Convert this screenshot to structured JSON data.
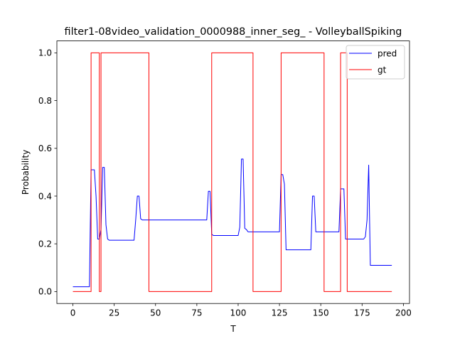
{
  "chart_data": {
    "type": "line",
    "title": "filter1-08video_validation_0000988_inner_seg_ - VolleyballSpiking",
    "xlabel": "T",
    "ylabel": "Probability",
    "xlim": [
      -9.7,
      203.7
    ],
    "ylim": [
      -0.05,
      1.05
    ],
    "xticks": [
      0,
      25,
      50,
      75,
      100,
      125,
      150,
      175,
      200
    ],
    "yticks": [
      0.0,
      0.2,
      0.4,
      0.6,
      0.8,
      1.0
    ],
    "xtick_labels": [
      "0",
      "25",
      "50",
      "75",
      "100",
      "125",
      "150",
      "175",
      "200"
    ],
    "ytick_labels": [
      "0.0",
      "0.2",
      "0.4",
      "0.6",
      "0.8",
      "1.0"
    ],
    "grid": false,
    "legend_position": "top-right",
    "series": [
      {
        "name": "pred",
        "color": "#0000ff",
        "x": [
          0,
          10,
          11,
          12,
          13,
          14,
          15,
          16,
          17,
          18,
          19,
          20,
          21,
          22,
          37,
          38,
          39,
          40,
          41,
          42,
          81,
          82,
          83,
          84,
          85,
          100,
          101,
          102,
          103,
          104,
          105,
          106,
          125,
          126,
          127,
          128,
          129,
          144,
          145,
          146,
          147,
          161,
          162,
          163,
          164,
          165,
          176,
          177,
          178,
          179,
          180,
          193
        ],
        "y": [
          0.02,
          0.02,
          0.51,
          0.51,
          0.51,
          0.4,
          0.22,
          0.22,
          0.26,
          0.52,
          0.52,
          0.28,
          0.22,
          0.215,
          0.215,
          0.3,
          0.4,
          0.4,
          0.305,
          0.3,
          0.3,
          0.42,
          0.42,
          0.24,
          0.235,
          0.235,
          0.27,
          0.555,
          0.555,
          0.265,
          0.26,
          0.25,
          0.25,
          0.49,
          0.49,
          0.45,
          0.175,
          0.175,
          0.4,
          0.4,
          0.25,
          0.25,
          0.43,
          0.43,
          0.43,
          0.22,
          0.22,
          0.23,
          0.3,
          0.53,
          0.11,
          0.11
        ]
      },
      {
        "name": "gt",
        "color": "#ff0000",
        "x": [
          0,
          11,
          11,
          16,
          16,
          17,
          17,
          46,
          46,
          84,
          84,
          109,
          109,
          126,
          126,
          152,
          152,
          162,
          162,
          166,
          166,
          193
        ],
        "y": [
          0,
          0,
          1,
          1,
          0,
          0,
          1,
          1,
          0,
          0,
          1,
          1,
          0,
          0,
          1,
          1,
          0,
          0,
          1,
          1,
          0,
          0
        ]
      }
    ]
  }
}
